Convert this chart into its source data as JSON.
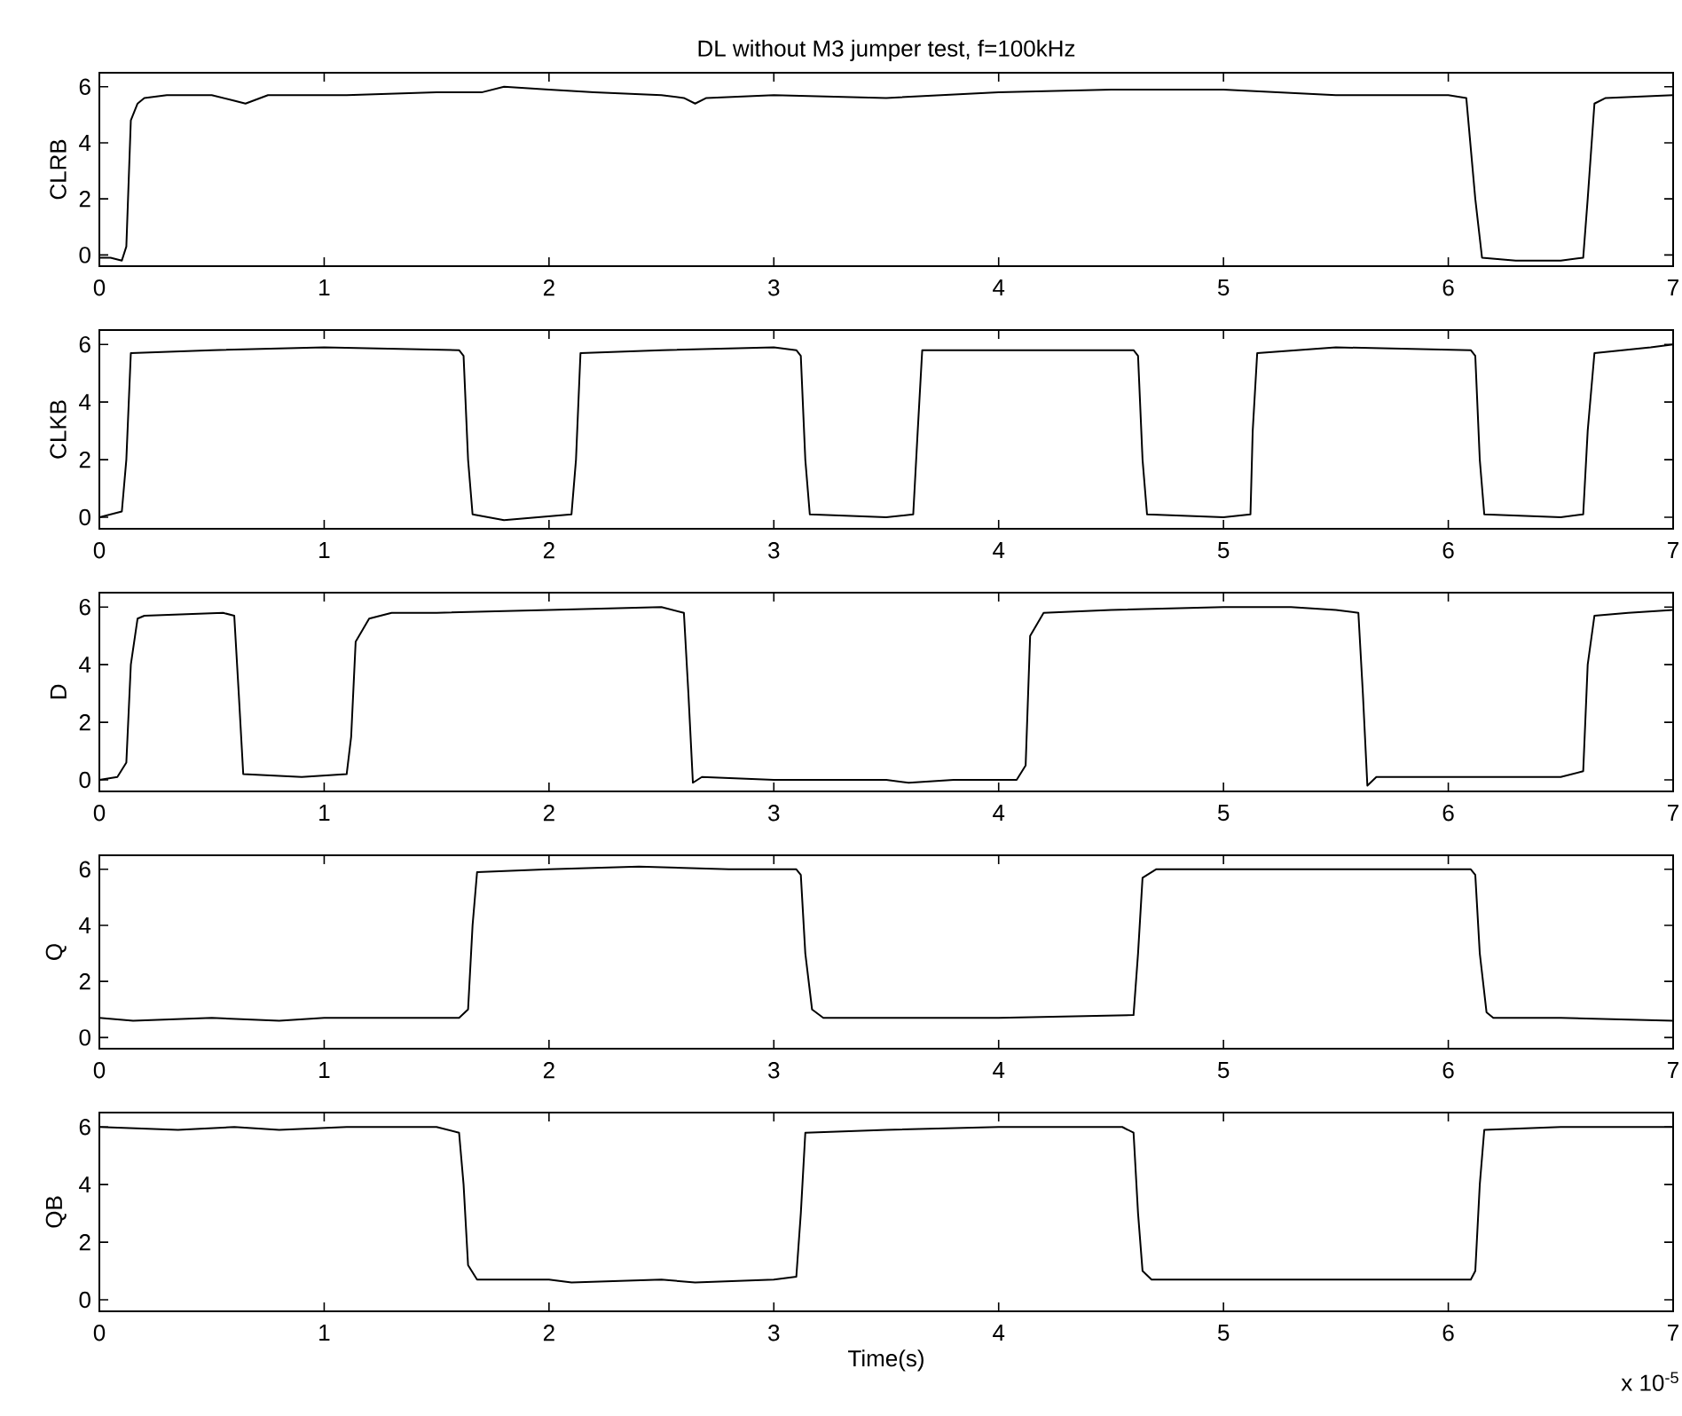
{
  "chart_data": [
    {
      "type": "line",
      "title": "DL without M3 jumper test, f=100kHz",
      "ylabel": "CLRB",
      "xlim": [
        0,
        7
      ],
      "xticks": [
        0,
        1,
        2,
        3,
        4,
        5,
        6,
        7
      ],
      "ylim": [
        -0.4,
        6.5
      ],
      "yticks": [
        0,
        2,
        4,
        6
      ],
      "series": [
        {
          "color": "#000000",
          "x": [
            0,
            0.05,
            0.1,
            0.12,
            0.14,
            0.17,
            0.2,
            0.3,
            0.5,
            0.6,
            0.65,
            0.75,
            1.0,
            1.1,
            1.5,
            1.7,
            1.8,
            2.0,
            2.2,
            2.5,
            2.6,
            2.65,
            2.7,
            3.0,
            3.5,
            4.0,
            4.5,
            5.0,
            5.5,
            6.0,
            6.08,
            6.12,
            6.15,
            6.3,
            6.5,
            6.6,
            6.62,
            6.65,
            6.7,
            7.0
          ],
          "values": [
            -0.1,
            -0.1,
            -0.2,
            0.3,
            4.8,
            5.4,
            5.6,
            5.7,
            5.7,
            5.5,
            5.4,
            5.7,
            5.7,
            5.7,
            5.8,
            5.8,
            6.0,
            5.9,
            5.8,
            5.7,
            5.6,
            5.4,
            5.6,
            5.7,
            5.6,
            5.8,
            5.9,
            5.9,
            5.7,
            5.7,
            5.6,
            2,
            -0.1,
            -0.2,
            -0.2,
            -0.1,
            2,
            5.4,
            5.6,
            5.7
          ]
        }
      ]
    },
    {
      "type": "line",
      "ylabel": "CLKB",
      "xlim": [
        0,
        7
      ],
      "xticks": [
        0,
        1,
        2,
        3,
        4,
        5,
        6,
        7
      ],
      "ylim": [
        -0.4,
        6.5
      ],
      "yticks": [
        0,
        2,
        4,
        6
      ],
      "series": [
        {
          "color": "#000000",
          "x": [
            0,
            0.1,
            0.12,
            0.14,
            0.5,
            1.0,
            1.6,
            1.62,
            1.64,
            1.66,
            1.8,
            2.1,
            2.12,
            2.14,
            2.5,
            3.0,
            3.1,
            3.12,
            3.14,
            3.16,
            3.5,
            3.62,
            3.64,
            3.66,
            4.6,
            4.62,
            4.64,
            4.66,
            5.0,
            5.12,
            5.13,
            5.15,
            5.5,
            6.1,
            6.12,
            6.14,
            6.16,
            6.5,
            6.6,
            6.62,
            6.65,
            6.9,
            7.0
          ],
          "values": [
            0,
            0.2,
            2,
            5.7,
            5.8,
            5.9,
            5.8,
            5.6,
            2,
            0.1,
            -0.1,
            0.1,
            2,
            5.7,
            5.8,
            5.9,
            5.8,
            5.6,
            2,
            0.1,
            0.0,
            0.1,
            3,
            5.8,
            5.8,
            5.6,
            2,
            0.1,
            0.0,
            0.1,
            3,
            5.7,
            5.9,
            5.8,
            5.6,
            2,
            0.1,
            0.0,
            0.1,
            3,
            5.7,
            5.9,
            6.0
          ]
        }
      ]
    },
    {
      "type": "line",
      "ylabel": "D",
      "xlim": [
        0,
        7
      ],
      "xticks": [
        0,
        1,
        2,
        3,
        4,
        5,
        6,
        7
      ],
      "ylim": [
        -0.4,
        6.5
      ],
      "yticks": [
        0,
        2,
        4,
        6
      ],
      "series": [
        {
          "color": "#000000",
          "x": [
            0,
            0.08,
            0.12,
            0.14,
            0.17,
            0.2,
            0.55,
            0.6,
            0.62,
            0.64,
            0.9,
            1.1,
            1.12,
            1.14,
            1.2,
            1.3,
            1.5,
            2.0,
            2.5,
            2.6,
            2.62,
            2.64,
            2.68,
            3.0,
            3.5,
            3.6,
            3.8,
            4.08,
            4.12,
            4.14,
            4.2,
            4.5,
            5.0,
            5.3,
            5.5,
            5.6,
            5.62,
            5.64,
            5.68,
            6.0,
            6.5,
            6.6,
            6.62,
            6.65,
            6.8,
            7.0
          ],
          "values": [
            0,
            0.1,
            0.6,
            4,
            5.6,
            5.7,
            5.8,
            5.7,
            3,
            0.2,
            0.1,
            0.2,
            1.5,
            4.8,
            5.6,
            5.8,
            5.8,
            5.9,
            6.0,
            5.8,
            3,
            -0.1,
            0.1,
            0.0,
            0.0,
            -0.1,
            0.0,
            0.0,
            0.5,
            5,
            5.8,
            5.9,
            6.0,
            6.0,
            5.9,
            5.8,
            3,
            -0.2,
            0.1,
            0.1,
            0.1,
            0.3,
            4,
            5.7,
            5.8,
            5.9
          ]
        }
      ]
    },
    {
      "type": "line",
      "ylabel": "Q",
      "xlim": [
        0,
        7
      ],
      "xticks": [
        0,
        1,
        2,
        3,
        4,
        5,
        6,
        7
      ],
      "ylim": [
        -0.4,
        6.5
      ],
      "yticks": [
        0,
        2,
        4,
        6
      ],
      "series": [
        {
          "color": "#000000",
          "x": [
            0,
            0.15,
            0.5,
            0.8,
            1.0,
            1.6,
            1.64,
            1.66,
            1.68,
            2.0,
            2.4,
            2.8,
            3.1,
            3.12,
            3.14,
            3.17,
            3.22,
            3.5,
            4.0,
            4.6,
            4.62,
            4.64,
            4.7,
            5.0,
            5.5,
            6.1,
            6.12,
            6.14,
            6.17,
            6.2,
            6.5,
            7.0
          ],
          "values": [
            0.7,
            0.6,
            0.7,
            0.6,
            0.7,
            0.7,
            1,
            4,
            5.9,
            6.0,
            6.1,
            6.0,
            6.0,
            5.8,
            3,
            1,
            0.7,
            0.7,
            0.7,
            0.8,
            3,
            5.7,
            6.0,
            6.0,
            6.0,
            6.0,
            5.8,
            3,
            0.9,
            0.7,
            0.7,
            0.6
          ]
        }
      ]
    },
    {
      "type": "line",
      "ylabel": "QB",
      "xlabel": "Time(s)",
      "annotations": [
        "x 10$^{-5}$"
      ],
      "xlim": [
        0,
        7
      ],
      "xticks": [
        0,
        1,
        2,
        3,
        4,
        5,
        6,
        7
      ],
      "ylim": [
        -0.4,
        6.5
      ],
      "yticks": [
        0,
        2,
        4,
        6
      ],
      "series": [
        {
          "color": "#000000",
          "x": [
            0,
            0.35,
            0.6,
            0.8,
            1.1,
            1.5,
            1.6,
            1.62,
            1.64,
            1.68,
            2.0,
            2.1,
            2.5,
            2.65,
            3.0,
            3.1,
            3.12,
            3.14,
            3.5,
            4.0,
            4.55,
            4.6,
            4.62,
            4.64,
            4.68,
            5.0,
            5.5,
            6.1,
            6.12,
            6.14,
            6.16,
            6.5,
            7.0
          ],
          "values": [
            6.0,
            5.9,
            6.0,
            5.9,
            6.0,
            6.0,
            5.8,
            4,
            1.2,
            0.7,
            0.7,
            0.6,
            0.7,
            0.6,
            0.7,
            0.8,
            3,
            5.8,
            5.9,
            6.0,
            6.0,
            5.8,
            3,
            1,
            0.7,
            0.7,
            0.7,
            0.7,
            1,
            4,
            5.9,
            6.0,
            6.0
          ]
        }
      ]
    }
  ]
}
